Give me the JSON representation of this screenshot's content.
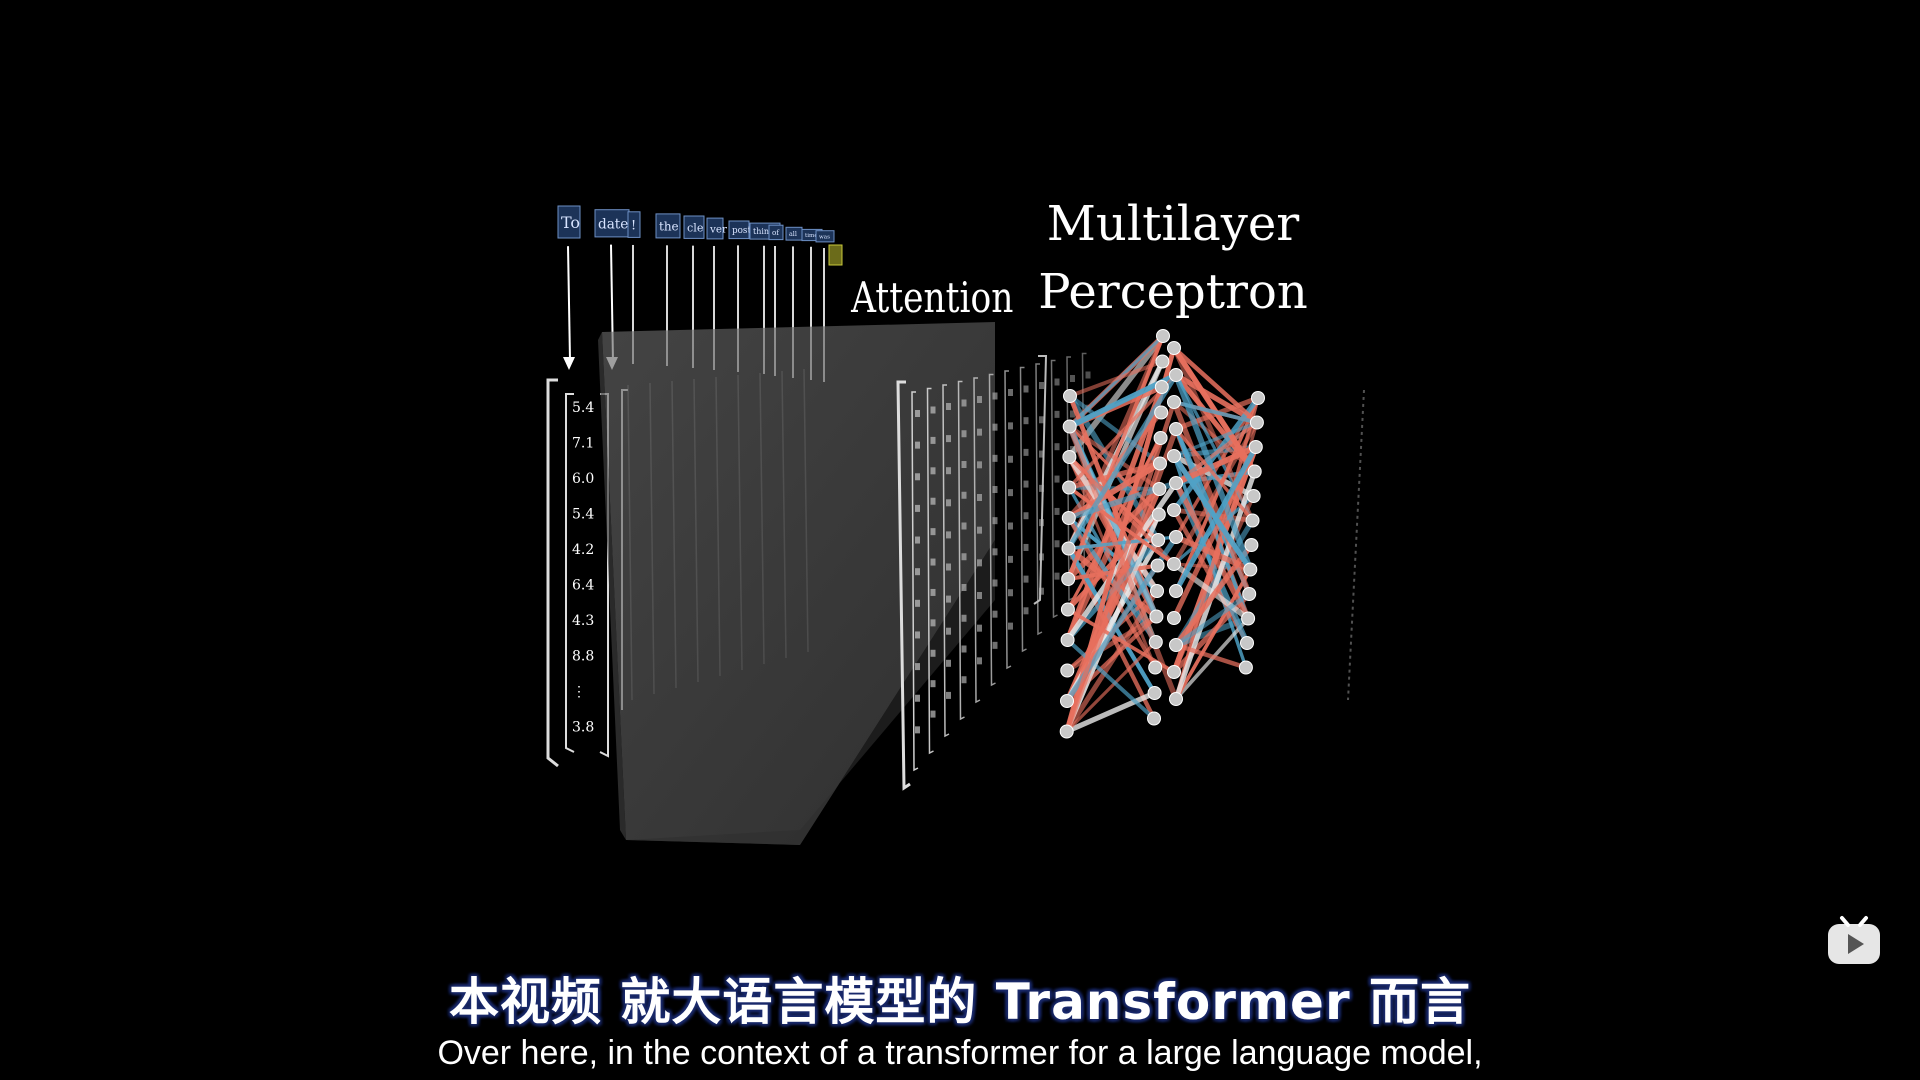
{
  "tokens": [
    "To",
    "date",
    "!",
    "the",
    "cle",
    "ver",
    "post",
    "thinker",
    "of",
    "all",
    "time",
    "was"
  ],
  "attention_label": "Attention",
  "mlp_label_line1": "Multilayer",
  "mlp_label_line2": "Perceptron",
  "vector_values": [
    "5.4",
    "7.1",
    "6.0",
    "5.4",
    "4.2",
    "6.4",
    "4.3",
    "8.8",
    "⋮",
    "3.8"
  ],
  "subtitle_zh": "本视频  就大语言模型的 Transformer 而言",
  "subtitle_en": "Over here, in the context of a transformer for a large language model,",
  "colors": {
    "background": "#000000",
    "mlp_red": "#e8705e",
    "mlp_blue": "#4fa3c8",
    "node": "#c8c8c8",
    "token_box": "#2c4a7a",
    "attention_block": "#5a5a5a"
  },
  "icons": {
    "play_badge": "bilibili-play-icon"
  }
}
